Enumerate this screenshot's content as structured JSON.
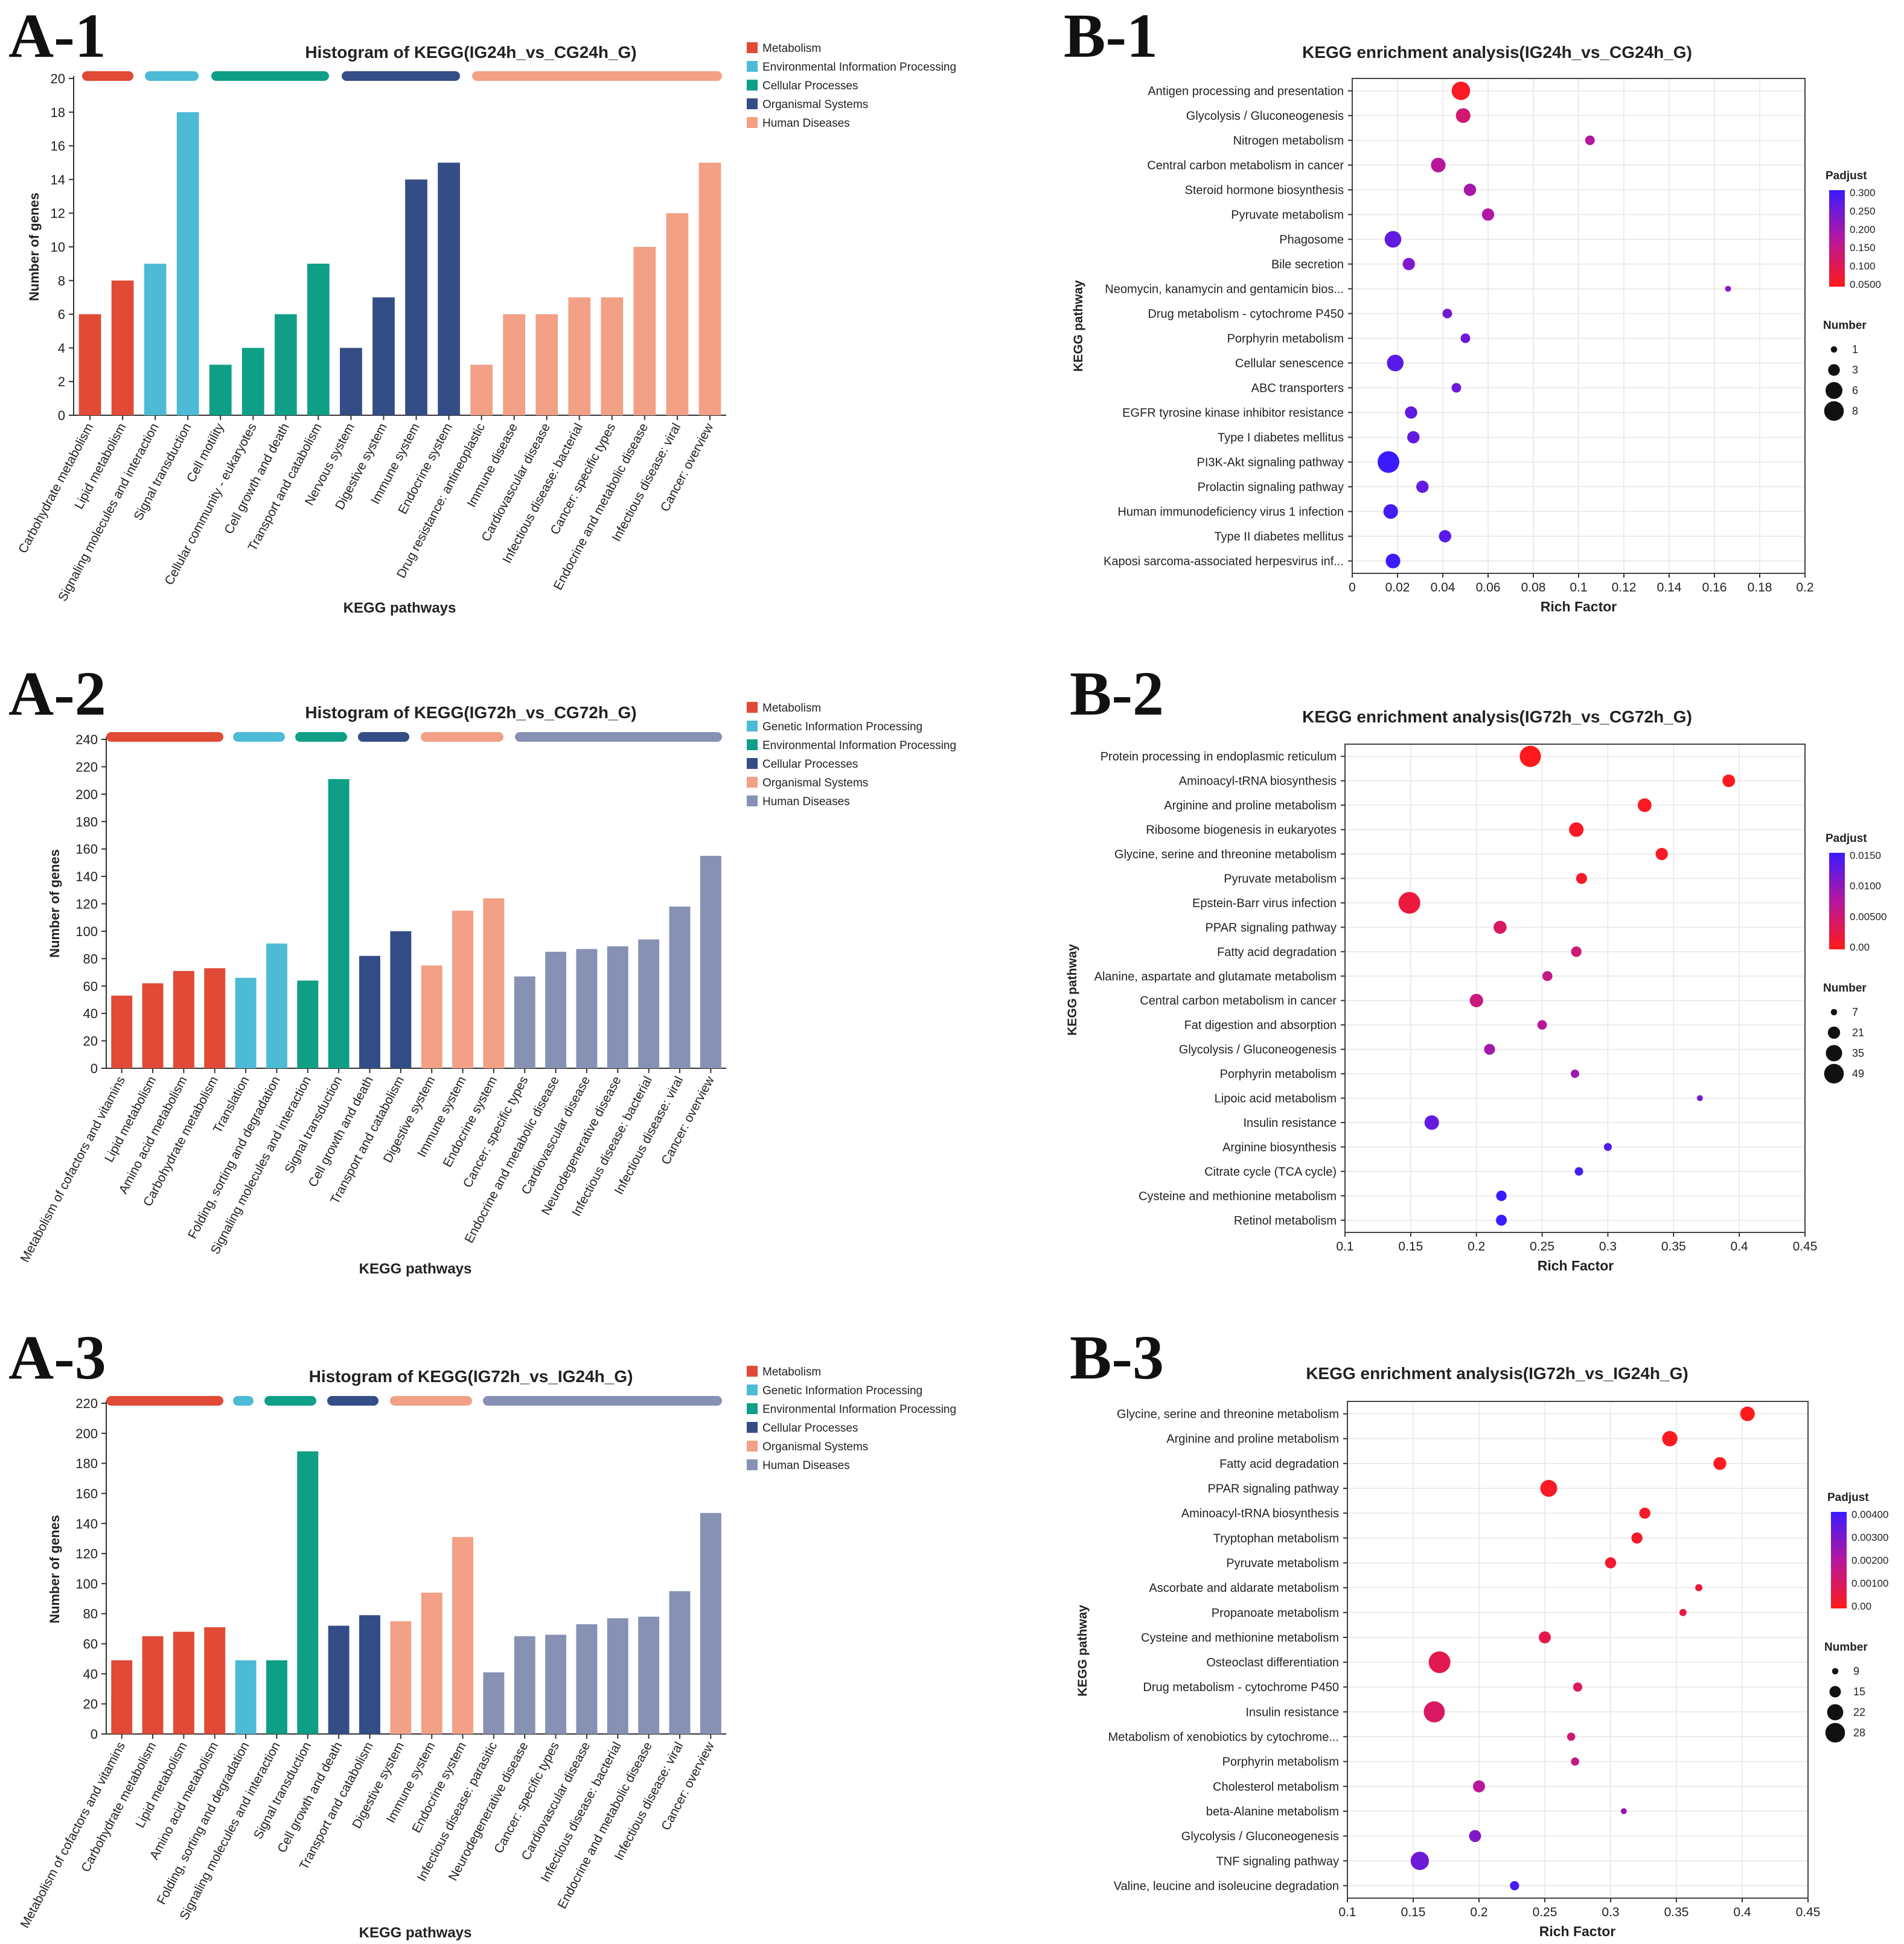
{
  "panel_labels": [
    "A-1",
    "A-2",
    "A-3",
    "B-1",
    "B-2",
    "B-3"
  ],
  "chart_data": [
    {
      "id": "A-1",
      "type": "bar",
      "title": "Histogram of KEGG(IG24h_vs_CG24h_G)",
      "xlabel": "KEGG pathways",
      "ylabel": "Number of genes",
      "ylim": [
        0,
        20
      ],
      "yticks": [
        0,
        2,
        4,
        6,
        8,
        10,
        12,
        14,
        16,
        18,
        20
      ],
      "legend": [
        {
          "name": "Metabolism",
          "color": "#e04a36"
        },
        {
          "name": "Environmental Information Processing",
          "color": "#4dbbd5"
        },
        {
          "name": "Cellular Processes",
          "color": "#0e9f86"
        },
        {
          "name": "Organismal Systems",
          "color": "#344d87"
        },
        {
          "name": "Human Diseases",
          "color": "#f2a086"
        }
      ],
      "categories": [
        "Carbohydrate metabolism",
        "Lipid metabolism",
        "Signaling molecules and interaction",
        "Signal transduction",
        "Cell motility",
        "Cellular community - eukaryotes",
        "Cell growth and death",
        "Transport and catabolism",
        "Nervous system",
        "Digestive system",
        "Immune system",
        "Endocrine system",
        "Drug resistance: antineoplastic",
        "Immune disease",
        "Cardiovascular disease",
        "Infectious disease: bacterial",
        "Cancer: specific types",
        "Endocrine and metabolic disease",
        "Infectious disease: viral",
        "Cancer: overview"
      ],
      "values": [
        6,
        8,
        9,
        18,
        3,
        4,
        6,
        9,
        4,
        7,
        14,
        15,
        3,
        6,
        6,
        7,
        7,
        10,
        12,
        15
      ],
      "groups": [
        0,
        0,
        1,
        1,
        2,
        2,
        2,
        2,
        3,
        3,
        3,
        3,
        4,
        4,
        4,
        4,
        4,
        4,
        4,
        4
      ]
    },
    {
      "id": "A-2",
      "type": "bar",
      "title": "Histogram of KEGG(IG72h_vs_CG72h_G)",
      "xlabel": "KEGG pathways",
      "ylabel": "Number of genes",
      "ylim": [
        0,
        240
      ],
      "yticks": [
        0,
        20,
        40,
        60,
        80,
        100,
        120,
        140,
        160,
        180,
        200,
        220,
        240
      ],
      "legend": [
        {
          "name": "Metabolism",
          "color": "#e04a36"
        },
        {
          "name": "Genetic Information Processing",
          "color": "#4dbbd5"
        },
        {
          "name": "Environmental Information Processing",
          "color": "#0e9f86"
        },
        {
          "name": "Cellular Processes",
          "color": "#344d87"
        },
        {
          "name": "Organismal Systems",
          "color": "#f2a086"
        },
        {
          "name": "Human Diseases",
          "color": "#8791b4"
        }
      ],
      "categories": [
        "Metabolism of cofactors and vitamins",
        "Lipid metabolism",
        "Amino acid metabolism",
        "Carbohydrate metabolism",
        "Translation",
        "Folding, sorting and degradation",
        "Signaling molecules and interaction",
        "Signal transduction",
        "Cell growth and death",
        "Transport and catabolism",
        "Digestive system",
        "Immune system",
        "Endocrine system",
        "Cancer: specific types",
        "Endocrine and metabolic disease",
        "Cardiovascular disease",
        "Neurodegenerative disease",
        "Infectious disease: bacterial",
        "Infectious disease: viral",
        "Cancer: overview"
      ],
      "values": [
        53,
        62,
        71,
        73,
        66,
        91,
        64,
        211,
        82,
        100,
        75,
        115,
        124,
        67,
        85,
        87,
        89,
        94,
        118,
        155
      ],
      "groups": [
        0,
        0,
        0,
        0,
        1,
        1,
        2,
        2,
        3,
        3,
        4,
        4,
        4,
        5,
        5,
        5,
        5,
        5,
        5,
        5
      ]
    },
    {
      "id": "A-3",
      "type": "bar",
      "title": "Histogram of KEGG(IG72h_vs_IG24h_G)",
      "xlabel": "KEGG pathways",
      "ylabel": "Number of genes",
      "ylim": [
        0,
        220
      ],
      "yticks": [
        0,
        20,
        40,
        60,
        80,
        100,
        120,
        140,
        160,
        180,
        200,
        220
      ],
      "legend": [
        {
          "name": "Metabolism",
          "color": "#e04a36"
        },
        {
          "name": "Genetic Information Processing",
          "color": "#4dbbd5"
        },
        {
          "name": "Environmental Information Processing",
          "color": "#0e9f86"
        },
        {
          "name": "Cellular Processes",
          "color": "#344d87"
        },
        {
          "name": "Organismal Systems",
          "color": "#f2a086"
        },
        {
          "name": "Human Diseases",
          "color": "#8791b4"
        }
      ],
      "categories": [
        "Metabolism of cofactors and vitamins",
        "Carbohydrate metabolism",
        "Lipid metabolism",
        "Amino acid metabolism",
        "Folding, sorting and degradation",
        "Signaling molecules and interaction",
        "Signal transduction",
        "Cell growth and death",
        "Transport and catabolism",
        "Digestive system",
        "Immune system",
        "Endocrine system",
        "Infectious disease: parasitic",
        "Neurodegenerative disease",
        "Cancer: specific types",
        "Cardiovascular disease",
        "Infectious disease: bacterial",
        "Endocrine and metabolic disease",
        "Infectious disease: viral",
        "Cancer: overview"
      ],
      "values": [
        49,
        65,
        68,
        71,
        49,
        49,
        188,
        72,
        79,
        75,
        94,
        131,
        41,
        65,
        66,
        73,
        77,
        78,
        95,
        147
      ],
      "groups": [
        0,
        0,
        0,
        0,
        1,
        2,
        2,
        3,
        3,
        4,
        4,
        4,
        5,
        5,
        5,
        5,
        5,
        5,
        5,
        5
      ]
    },
    {
      "id": "B-1",
      "type": "scatter",
      "title": "KEGG enrichment analysis(IG24h_vs_CG24h_G)",
      "xlabel": "Rich Factor",
      "ylabel": "KEGG pathway",
      "xlim": [
        0,
        0.2
      ],
      "xticks": [
        "0",
        "0.02",
        "0.04",
        "0.06",
        "0.08",
        "0.1",
        "0.12",
        "0.14",
        "0.16",
        "0.18",
        "0.2"
      ],
      "padjust_title": "Padjust",
      "padjust_range": [
        0.05,
        0.3
      ],
      "padjust_ticks": [
        "0.300",
        "0.250",
        "0.200",
        "0.150",
        "0.100",
        "0.0500"
      ],
      "number_title": "Number",
      "number_legend": [
        1,
        3,
        6,
        8
      ],
      "number_range": [
        1,
        8
      ],
      "pathways": [
        "Antigen processing and presentation",
        "Glycolysis / Gluconeogenesis",
        "Nitrogen metabolism",
        "Central carbon metabolism in cancer",
        "Steroid hormone biosynthesis",
        "Pyruvate metabolism",
        "Phagosome",
        "Bile secretion",
        "Neomycin, kanamycin and gentamicin bios...",
        "Drug metabolism - cytochrome P450",
        "Porphyrin metabolism",
        "Cellular senescence",
        "ABC transporters",
        "EGFR tyrosine kinase inhibitor resistance",
        "Type I diabetes mellitus",
        "PI3K-Akt signaling pathway",
        "Prolactin signaling pathway",
        "Human immunodeficiency virus 1 infection",
        "Type II diabetes mellitus",
        "Kaposi sarcoma-associated herpesvirus inf..."
      ],
      "rich_factor": [
        0.048,
        0.049,
        0.105,
        0.038,
        0.052,
        0.06,
        0.018,
        0.025,
        0.166,
        0.042,
        0.05,
        0.019,
        0.046,
        0.026,
        0.027,
        0.016,
        0.031,
        0.017,
        0.041,
        0.018
      ],
      "number": [
        6,
        4,
        2,
        4,
        3,
        3,
        5,
        3,
        1,
        2,
        2,
        5,
        2,
        3,
        3,
        8,
        3,
        4,
        3,
        4
      ],
      "padjust": [
        0.06,
        0.13,
        0.18,
        0.17,
        0.19,
        0.18,
        0.26,
        0.23,
        0.22,
        0.24,
        0.25,
        0.27,
        0.25,
        0.26,
        0.26,
        0.3,
        0.26,
        0.29,
        0.27,
        0.3
      ]
    },
    {
      "id": "B-2",
      "type": "scatter",
      "title": "KEGG enrichment analysis(IG72h_vs_CG72h_G)",
      "xlabel": "Rich Factor",
      "ylabel": "KEGG pathway",
      "xlim": [
        0.1,
        0.45
      ],
      "xticks": [
        "0.1",
        "0.15",
        "0.2",
        "0.25",
        "0.3",
        "0.35",
        "0.4",
        "0.45"
      ],
      "padjust_title": "Padjust",
      "padjust_range": [
        0,
        0.015
      ],
      "padjust_ticks": [
        "0.0150",
        "0.0100",
        "0.00500",
        "0.00"
      ],
      "number_title": "Number",
      "number_legend": [
        7,
        21,
        35,
        49
      ],
      "number_range": [
        7,
        49
      ],
      "pathways": [
        "Protein processing in endoplasmic reticulum",
        "Aminoacyl-tRNA biosynthesis",
        "Arginine and proline metabolism",
        "Ribosome biogenesis in eukaryotes",
        "Glycine, serine and threonine metabolism",
        "Pyruvate metabolism",
        "Epstein-Barr virus infection",
        "PPAR signaling pathway",
        "Fatty acid degradation",
        "Alanine, aspartate and glutamate metabolism",
        "Central carbon metabolism in cancer",
        "Fat digestion and absorption",
        "Glycolysis / Gluconeogenesis",
        "Porphyrin metabolism",
        "Lipoic acid metabolism",
        "Insulin resistance",
        "Arginine biosynthesis",
        "Citrate cycle (TCA cycle)",
        "Cysteine and methionine metabolism",
        "Retinol metabolism"
      ],
      "rich_factor": [
        0.241,
        0.392,
        0.328,
        0.276,
        0.341,
        0.28,
        0.149,
        0.218,
        0.276,
        0.254,
        0.2,
        0.25,
        0.21,
        0.275,
        0.37,
        0.166,
        0.3,
        0.278,
        0.219,
        0.219
      ],
      "number": [
        47,
        20,
        23,
        25,
        19,
        16,
        49,
        21,
        15,
        14,
        22,
        13,
        16,
        11,
        7,
        25,
        10,
        11,
        15,
        16
      ],
      "padjust": [
        0.0001,
        0.0002,
        0.0004,
        0.0006,
        0.0006,
        0.001,
        0.002,
        0.004,
        0.005,
        0.006,
        0.0055,
        0.007,
        0.0085,
        0.009,
        0.011,
        0.0125,
        0.0135,
        0.0145,
        0.0155,
        0.016
      ]
    },
    {
      "id": "B-3",
      "type": "scatter",
      "title": "KEGG enrichment analysis(IG72h_vs_IG24h_G)",
      "xlabel": "Rich Factor",
      "ylabel": "KEGG pathway",
      "xlim": [
        0.1,
        0.45
      ],
      "xticks": [
        "0.1",
        "0.15",
        "0.2",
        "0.25",
        "0.3",
        "0.35",
        "0.4",
        "0.45"
      ],
      "padjust_title": "Padjust",
      "padjust_range": [
        0,
        0.0045
      ],
      "padjust_ticks": [
        "0.00400",
        "0.00300",
        "0.00200",
        "0.00100",
        "0.00"
      ],
      "number_title": "Number",
      "number_legend": [
        9,
        15,
        22,
        28
      ],
      "number_range": [
        9,
        28
      ],
      "pathways": [
        "Glycine, serine and threonine metabolism",
        "Arginine and proline metabolism",
        "Fatty acid degradation",
        "PPAR signaling pathway",
        "Aminoacyl-tRNA biosynthesis",
        "Tryptophan metabolism",
        "Pyruvate metabolism",
        "Ascorbate and aldarate metabolism",
        "Propanoate metabolism",
        "Cysteine and methionine metabolism",
        "Osteoclast differentiation",
        "Drug metabolism - cytochrome P450",
        "Insulin resistance",
        "Metabolism of xenobiotics by cytochrome...",
        "Porphyrin metabolism",
        "Cholesterol metabolism",
        "beta-Alanine metabolism",
        "Glycolysis / Gluconeogenesis",
        "TNF signaling pathway",
        "Valine, leucine and isoleucine degradation"
      ],
      "rich_factor": [
        0.404,
        0.345,
        0.383,
        0.253,
        0.326,
        0.32,
        0.3,
        0.367,
        0.355,
        0.25,
        0.17,
        0.275,
        0.166,
        0.27,
        0.273,
        0.2,
        0.31,
        0.197,
        0.155,
        0.227
      ],
      "number": [
        18,
        19,
        16,
        21,
        14,
        14,
        14,
        10,
        10,
        15,
        28,
        12,
        27,
        11,
        11,
        15,
        9,
        15,
        23,
        12
      ],
      "padjust": [
        5e-05,
        0.0001,
        0.0001,
        0.0002,
        0.0002,
        0.0003,
        0.0004,
        0.0006,
        0.0007,
        0.0008,
        0.0009,
        0.0011,
        0.0012,
        0.0015,
        0.0018,
        0.0022,
        0.0028,
        0.0032,
        0.0036,
        0.0042
      ]
    }
  ]
}
